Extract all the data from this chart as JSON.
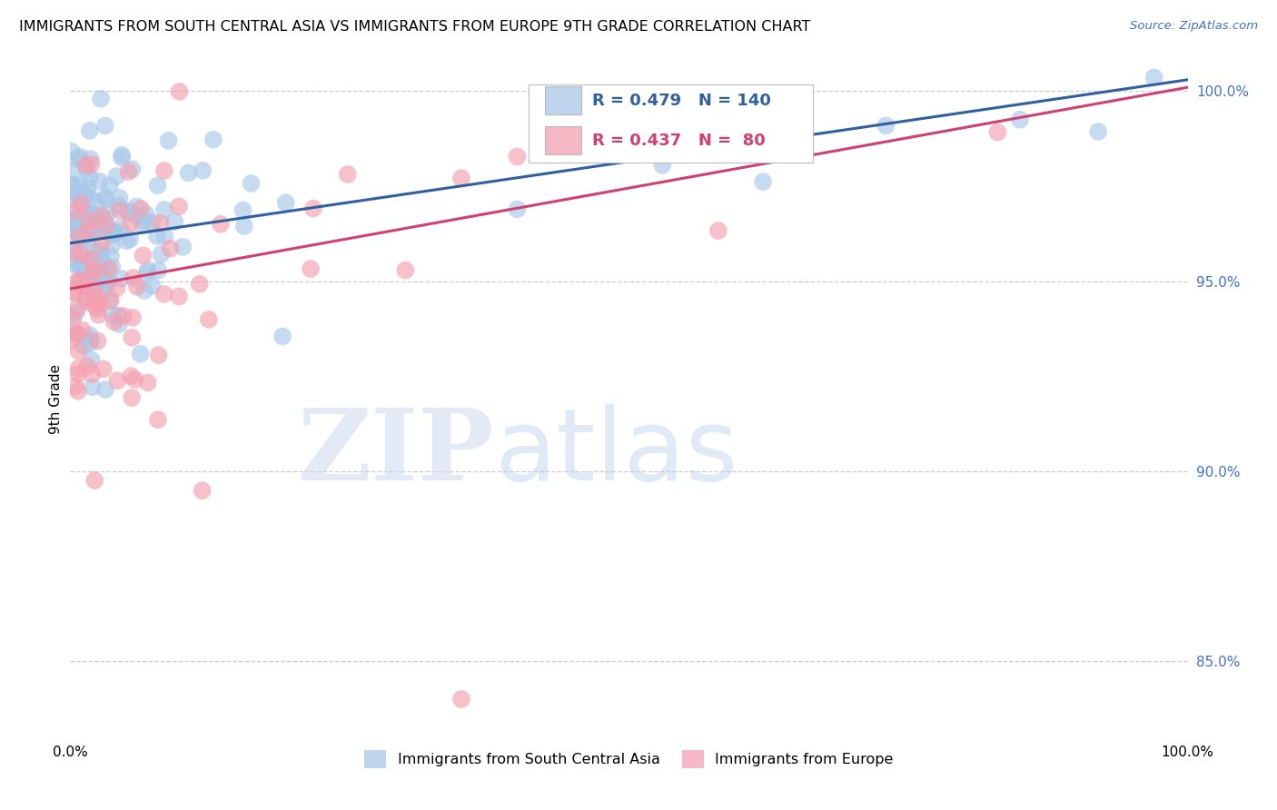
{
  "title": "IMMIGRANTS FROM SOUTH CENTRAL ASIA VS IMMIGRANTS FROM EUROPE 9TH GRADE CORRELATION CHART",
  "source": "Source: ZipAtlas.com",
  "ylabel": "9th Grade",
  "right_yticks": [
    85.0,
    90.0,
    95.0,
    100.0
  ],
  "right_ytick_labels": [
    "85.0%",
    "90.0%",
    "95.0%",
    "100.0%"
  ],
  "legend_blue_r": 0.479,
  "legend_blue_n": 140,
  "legend_pink_r": 0.437,
  "legend_pink_n": 80,
  "blue_color": "#a8c8e8",
  "pink_color": "#f4a0b0",
  "blue_line_color": "#3060a0",
  "pink_line_color": "#d04070",
  "legend_blue_text_color": "#3060a0",
  "legend_pink_text_color": "#d04070",
  "xmin": 0.0,
  "xmax": 100.0,
  "ymin": 83.0,
  "ymax": 100.8,
  "grid_color": "#cccccc",
  "bg_color": "#ffffff",
  "blue_line_x0": 0.0,
  "blue_line_y0": 96.0,
  "blue_line_x1": 100.0,
  "blue_line_y1": 100.3,
  "pink_line_x0": 0.0,
  "pink_line_y0": 94.8,
  "pink_line_x1": 100.0,
  "pink_line_y1": 100.1
}
